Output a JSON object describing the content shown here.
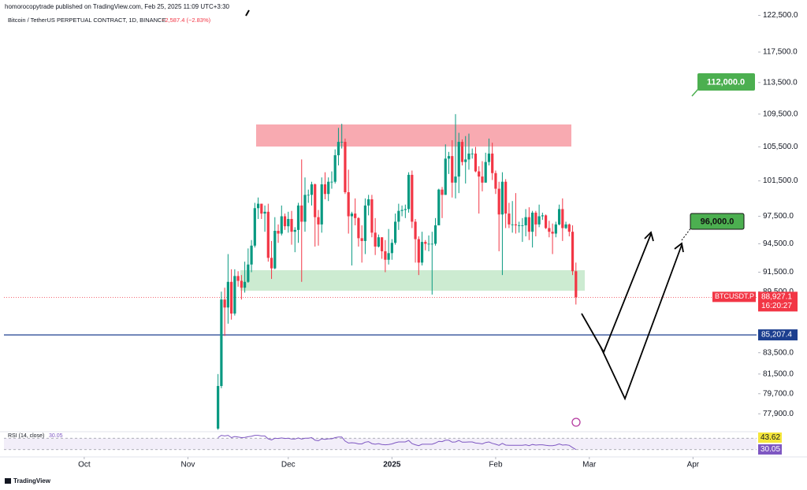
{
  "header": "homorocopytrade published on TradingView.com, Feb 25, 2025 11:09 UTC+3:30",
  "footer": "TradingView",
  "chart_data": {
    "type": "candlestick",
    "title": "Bitcoin / TetherUS PERPETUAL CONTRACT, 1D, BINANCE",
    "change": "−2,587.4 (−2.83%)",
    "log_scale": true,
    "up_color": "#089981",
    "down_color": "#f23645",
    "ylim": [
      76400,
      124100
    ],
    "yticks": [
      {
        "value": 122500,
        "label": "122,500.0"
      },
      {
        "value": 117500,
        "label": "117,500.0"
      },
      {
        "value": 113500,
        "label": "113,500.0"
      },
      {
        "value": 109500,
        "label": "109,500.0"
      },
      {
        "value": 105500,
        "label": "105,500.0"
      },
      {
        "value": 101500,
        "label": "101,500.0"
      },
      {
        "value": 97500,
        "label": "97,500.0"
      },
      {
        "value": 94500,
        "label": "94,500.0"
      },
      {
        "value": 91500,
        "label": "91,500.0"
      },
      {
        "value": 89500,
        "label": "89,500.0"
      },
      {
        "value": 83500,
        "label": "83,500.0"
      },
      {
        "value": 81500,
        "label": "81,500.0"
      },
      {
        "value": 79700,
        "label": "79,700.0"
      },
      {
        "value": 77900,
        "label": "77,900.0"
      }
    ],
    "xlim": [
      -64,
      161
    ],
    "xticks": [
      {
        "value": -40,
        "label": "Oct"
      },
      {
        "value": -9,
        "label": "Nov"
      },
      {
        "value": 21,
        "label": "Dec"
      },
      {
        "value": 52,
        "label": "2025"
      },
      {
        "value": 83,
        "label": "Feb"
      },
      {
        "value": 111,
        "label": "Mar"
      },
      {
        "value": 142,
        "label": "Apr"
      }
    ],
    "open": [
      76600,
      80400,
      88700,
      87900,
      90500,
      87300,
      91100,
      90600,
      89900,
      90500,
      92300,
      94300,
      98400,
      98900,
      97800,
      98000,
      93000,
      91900,
      95900,
      95600,
      97500,
      96400,
      97200,
      95800,
      96000,
      98700,
      96900,
      99900,
      99900,
      101100,
      97400,
      96600,
      101100,
      100000,
      101400,
      101400,
      104500,
      106100,
      106100,
      100200,
      97500,
      97800,
      97300,
      95100,
      94800,
      98700,
      99400,
      95700,
      94200,
      95200,
      93700,
      92800,
      93500,
      94600,
      96900,
      98100,
      98200,
      98300,
      102200,
      96900,
      95000,
      92500,
      94700,
      94500,
      94500,
      94500,
      96500,
      100500,
      99900,
      104100,
      104400,
      101300,
      102000,
      106100,
      103700,
      104000,
      104700,
      104700,
      102600,
      102000,
      101300,
      103700,
      104700,
      102400,
      100600,
      97700,
      101400,
      97800,
      96600,
      96600,
      96500,
      96500,
      96500,
      97400,
      95800,
      97900,
      96600,
      97500,
      97600,
      96200,
      95800,
      95600,
      96600,
      98300,
      96200,
      96600,
      95800,
      91600
    ],
    "high": [
      81500,
      89500,
      89900,
      93400,
      91800,
      91800,
      91600,
      91200,
      92600,
      94000,
      94900,
      99000,
      99600,
      98900,
      98700,
      98900,
      94800,
      97400,
      96600,
      98700,
      97800,
      98000,
      98100,
      96300,
      99000,
      104000,
      101900,
      100500,
      101400,
      101200,
      98200,
      101900,
      102500,
      101900,
      102600,
      105200,
      107800,
      108300,
      106500,
      102800,
      98000,
      99500,
      97400,
      96500,
      99500,
      99900,
      99900,
      97300,
      95500,
      95200,
      94900,
      96100,
      95000,
      97800,
      98900,
      98700,
      98800,
      102500,
      102700,
      97200,
      95300,
      95800,
      94900,
      95400,
      95800,
      97300,
      100600,
      100800,
      105800,
      104900,
      106300,
      109500,
      107200,
      106400,
      106800,
      107100,
      105300,
      105500,
      103200,
      103800,
      104800,
      106500,
      106000,
      102700,
      101400,
      102500,
      101700,
      99000,
      99200,
      100100,
      96900,
      97300,
      98300,
      98500,
      98100,
      98100,
      98800,
      97900,
      97700,
      97000,
      96700,
      96900,
      98800,
      99500,
      96900,
      96700,
      96500,
      92500
    ],
    "low": [
      76500,
      80200,
      85100,
      86300,
      86700,
      87100,
      90000,
      88700,
      89400,
      90400,
      91500,
      94100,
      97200,
      97200,
      95800,
      92600,
      90800,
      91800,
      94600,
      95400,
      96000,
      95700,
      94400,
      93600,
      94600,
      90500,
      95800,
      99000,
      98700,
      94200,
      94300,
      95700,
      99400,
      99200,
      100600,
      101200,
      103300,
      105300,
      100000,
      95600,
      92200,
      96500,
      94200,
      92500,
      93400,
      97600,
      95200,
      93300,
      94100,
      92900,
      91500,
      92300,
      92800,
      94400,
      96000,
      97500,
      97300,
      97900,
      96200,
      92500,
      91200,
      92200,
      93800,
      93700,
      89200,
      94300,
      96500,
      97300,
      99900,
      102300,
      99600,
      99500,
      100100,
      103300,
      101200,
      102800,
      104100,
      102500,
      97800,
      100300,
      101300,
      103300,
      101600,
      100000,
      93700,
      91200,
      96200,
      96200,
      95700,
      95600,
      95700,
      94700,
      95300,
      94900,
      94100,
      95300,
      96300,
      97100,
      96100,
      95200,
      93400,
      95200,
      96500,
      94800,
      96100,
      95300,
      91200,
      88200
    ],
    "close": [
      80400,
      88700,
      87900,
      90500,
      87300,
      91100,
      90600,
      89900,
      90500,
      92300,
      94300,
      98400,
      98900,
      97800,
      98000,
      93000,
      91900,
      95900,
      95600,
      97500,
      96400,
      97200,
      95800,
      96000,
      98700,
      96900,
      99900,
      99900,
      101100,
      97400,
      96600,
      101100,
      100000,
      101400,
      101400,
      104500,
      106100,
      106100,
      100200,
      97500,
      97800,
      97300,
      95100,
      94800,
      98700,
      99400,
      95700,
      94200,
      95200,
      93700,
      92800,
      93500,
      94600,
      96900,
      98100,
      98200,
      98300,
      102200,
      96900,
      95000,
      92500,
      94700,
      94500,
      94500,
      94500,
      96500,
      100500,
      99900,
      104100,
      104400,
      101300,
      102000,
      106100,
      103700,
      104000,
      104700,
      104700,
      102600,
      102000,
      101300,
      103700,
      104700,
      102400,
      100600,
      97700,
      101400,
      97800,
      96600,
      96600,
      96500,
      96500,
      96500,
      97400,
      95800,
      97900,
      96600,
      97500,
      97600,
      96200,
      95800,
      95600,
      96600,
      98300,
      96200,
      96600,
      95800,
      91600,
      88927.1
    ],
    "last_price": {
      "symbol": "BTCUSDT.P",
      "price": {
        "value": 88927.1,
        "label": "88,927.1"
      },
      "countdown": "16:20:27"
    },
    "level": {
      "value": 85207.4,
      "label": "85,207.4",
      "color": "#1c3f8f"
    },
    "targets": [
      "112,000.0",
      "96,000.0"
    ],
    "rsi": {
      "title": "RSI (14, close)",
      "color": "#7e57c2",
      "ylim": [
        10,
        90
      ],
      "bands": [
        30,
        70
      ],
      "ma": 43.62,
      "values": [
        72,
        80,
        78,
        80,
        72,
        76,
        74,
        72,
        73,
        75,
        77,
        80,
        80,
        78,
        78,
        68,
        64,
        70,
        69,
        71,
        69,
        70,
        67,
        67,
        71,
        67,
        70,
        70,
        72,
        63,
        61,
        68,
        66,
        68,
        68,
        72,
        74,
        74,
        60,
        53,
        54,
        53,
        50,
        50,
        56,
        58,
        51,
        49,
        51,
        48,
        47,
        48,
        50,
        54,
        57,
        57,
        57,
        62,
        51,
        47,
        44,
        49,
        49,
        49,
        49,
        53,
        59,
        58,
        63,
        63,
        56,
        57,
        62,
        56,
        56,
        57,
        57,
        53,
        52,
        50,
        55,
        57,
        52,
        49,
        45,
        52,
        46,
        45,
        45,
        45,
        45,
        45,
        47,
        44,
        48,
        46,
        47,
        47,
        45,
        44,
        44,
        46,
        50,
        46,
        47,
        45,
        37,
        30.05
      ]
    }
  }
}
